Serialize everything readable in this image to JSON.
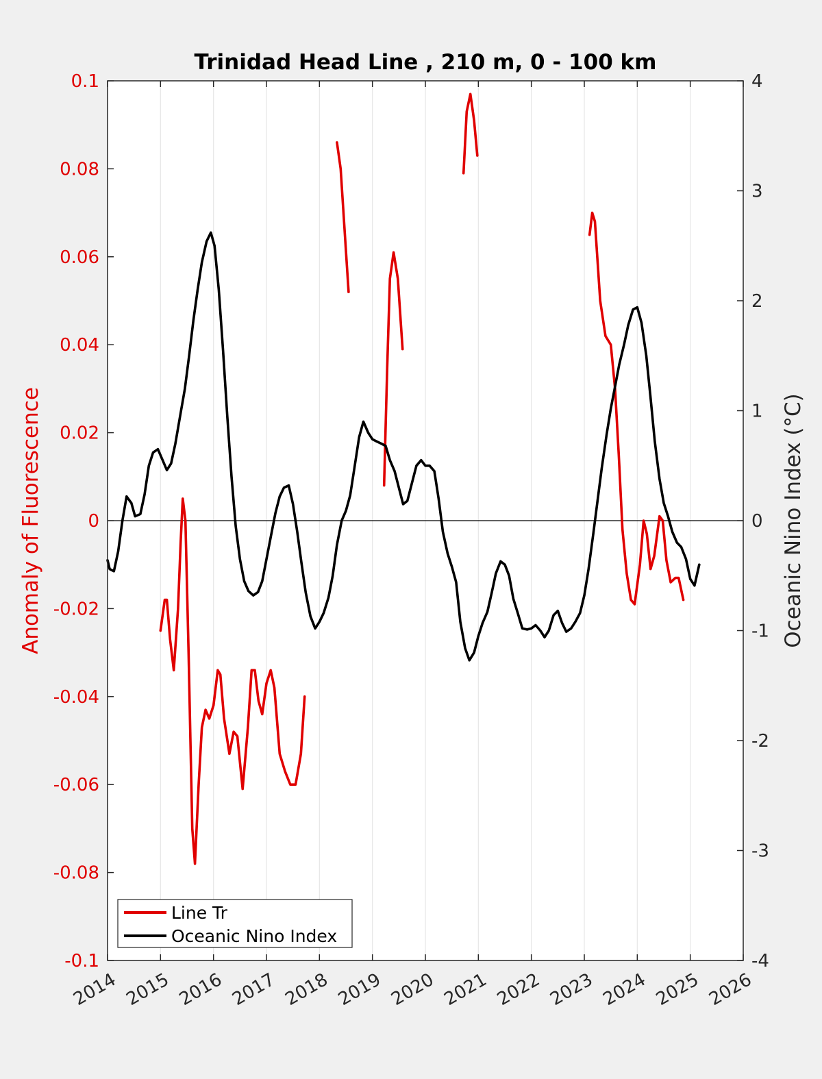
{
  "chart_data": {
    "type": "line",
    "title": "Trinidad Head Line , 210 m, 0 - 100 km",
    "ylabel_left": "Anomaly of Fluorescence",
    "ylabel_right": "Oceanic Nino Index (°C)",
    "xlim": [
      2014,
      2026
    ],
    "ylim_left": [
      -0.1,
      0.1
    ],
    "ylim_right": [
      -4,
      4
    ],
    "x_ticks": [
      2014,
      2015,
      2016,
      2017,
      2018,
      2019,
      2020,
      2021,
      2022,
      2023,
      2024,
      2025,
      2026
    ],
    "x_tick_labels": [
      "2014",
      "2015",
      "2016",
      "2017",
      "2018",
      "2019",
      "2020",
      "2021",
      "2022",
      "2023",
      "2024",
      "2025",
      "2026"
    ],
    "y_left_ticks": [
      -0.1,
      -0.08,
      -0.06,
      -0.04,
      -0.02,
      0,
      0.02,
      0.04,
      0.06,
      0.08,
      0.1
    ],
    "y_left_tick_labels": [
      "-0.1",
      "-0.08",
      "-0.06",
      "-0.04",
      "-0.02",
      "0",
      "0.02",
      "0.04",
      "0.06",
      "0.08",
      "0.1"
    ],
    "y_right_ticks": [
      -4,
      -3,
      -2,
      -1,
      0,
      1,
      2,
      3,
      4
    ],
    "y_right_tick_labels": [
      "-4",
      "-3",
      "-2",
      "-1",
      "0",
      "1",
      "2",
      "3",
      "4"
    ],
    "grid": "vertical",
    "legend_position": "bottom-left",
    "colors": {
      "line_tr": "#e00000",
      "oni": "#000000",
      "left_axis": "#e00000"
    },
    "series": [
      {
        "name": "Line Tr",
        "axis": "left",
        "segments": [
          [
            [
              2015.0,
              -0.025
            ],
            [
              2015.08,
              -0.018
            ],
            [
              2015.12,
              -0.018
            ],
            [
              2015.18,
              -0.027
            ],
            [
              2015.25,
              -0.034
            ],
            [
              2015.33,
              -0.02
            ],
            [
              2015.38,
              -0.005
            ],
            [
              2015.42,
              0.005
            ],
            [
              2015.47,
              0.0
            ],
            [
              2015.53,
              -0.03
            ],
            [
              2015.6,
              -0.07
            ],
            [
              2015.65,
              -0.078
            ],
            [
              2015.72,
              -0.06
            ],
            [
              2015.78,
              -0.047
            ],
            [
              2015.85,
              -0.043
            ],
            [
              2015.92,
              -0.045
            ],
            [
              2016.0,
              -0.042
            ],
            [
              2016.08,
              -0.034
            ],
            [
              2016.13,
              -0.035
            ],
            [
              2016.2,
              -0.045
            ],
            [
              2016.3,
              -0.053
            ],
            [
              2016.38,
              -0.048
            ],
            [
              2016.45,
              -0.049
            ],
            [
              2016.55,
              -0.061
            ],
            [
              2016.65,
              -0.047
            ],
            [
              2016.72,
              -0.034
            ],
            [
              2016.78,
              -0.034
            ],
            [
              2016.85,
              -0.041
            ],
            [
              2016.92,
              -0.044
            ],
            [
              2017.0,
              -0.037
            ],
            [
              2017.08,
              -0.034
            ],
            [
              2017.15,
              -0.038
            ],
            [
              2017.25,
              -0.053
            ],
            [
              2017.35,
              -0.057
            ],
            [
              2017.45,
              -0.06
            ],
            [
              2017.55,
              -0.06
            ],
            [
              2017.65,
              -0.053
            ],
            [
              2017.72,
              -0.04
            ]
          ],
          [
            [
              2018.33,
              0.086
            ],
            [
              2018.4,
              0.08
            ],
            [
              2018.48,
              0.065
            ],
            [
              2018.55,
              0.052
            ]
          ],
          [
            [
              2019.22,
              0.008
            ],
            [
              2019.28,
              0.035
            ],
            [
              2019.33,
              0.055
            ],
            [
              2019.4,
              0.061
            ],
            [
              2019.48,
              0.055
            ],
            [
              2019.57,
              0.039
            ]
          ],
          [
            [
              2020.72,
              0.079
            ],
            [
              2020.78,
              0.093
            ],
            [
              2020.85,
              0.097
            ],
            [
              2020.92,
              0.091
            ],
            [
              2020.98,
              0.083
            ]
          ],
          [
            [
              2023.1,
              0.065
            ],
            [
              2023.15,
              0.07
            ],
            [
              2023.2,
              0.068
            ],
            [
              2023.3,
              0.05
            ],
            [
              2023.4,
              0.042
            ],
            [
              2023.5,
              0.04
            ],
            [
              2023.58,
              0.03
            ],
            [
              2023.65,
              0.015
            ],
            [
              2023.72,
              -0.002
            ],
            [
              2023.8,
              -0.012
            ],
            [
              2023.88,
              -0.018
            ],
            [
              2023.95,
              -0.019
            ],
            [
              2024.05,
              -0.01
            ],
            [
              2024.12,
              0.0
            ],
            [
              2024.18,
              -0.003
            ],
            [
              2024.25,
              -0.011
            ],
            [
              2024.32,
              -0.008
            ],
            [
              2024.42,
              0.001
            ],
            [
              2024.48,
              0.0
            ],
            [
              2024.55,
              -0.009
            ],
            [
              2024.63,
              -0.014
            ],
            [
              2024.72,
              -0.013
            ],
            [
              2024.78,
              -0.013
            ],
            [
              2024.87,
              -0.018
            ]
          ]
        ]
      },
      {
        "name": "Oceanic Nino Index",
        "axis": "right",
        "segments": [
          [
            [
              2014.0,
              -0.36
            ],
            [
              2014.04,
              -0.44
            ],
            [
              2014.12,
              -0.46
            ],
            [
              2014.2,
              -0.28
            ],
            [
              2014.28,
              0.0
            ],
            [
              2014.36,
              0.22
            ],
            [
              2014.45,
              0.16
            ],
            [
              2014.52,
              0.04
            ],
            [
              2014.62,
              0.06
            ],
            [
              2014.7,
              0.24
            ],
            [
              2014.78,
              0.5
            ],
            [
              2014.86,
              0.62
            ],
            [
              2014.95,
              0.65
            ],
            [
              2015.04,
              0.55
            ],
            [
              2015.12,
              0.46
            ],
            [
              2015.2,
              0.52
            ],
            [
              2015.28,
              0.7
            ],
            [
              2015.37,
              0.95
            ],
            [
              2015.46,
              1.2
            ],
            [
              2015.54,
              1.5
            ],
            [
              2015.62,
              1.82
            ],
            [
              2015.7,
              2.1
            ],
            [
              2015.78,
              2.35
            ],
            [
              2015.87,
              2.54
            ],
            [
              2015.95,
              2.62
            ],
            [
              2016.02,
              2.5
            ],
            [
              2016.1,
              2.1
            ],
            [
              2016.18,
              1.55
            ],
            [
              2016.26,
              0.95
            ],
            [
              2016.34,
              0.4
            ],
            [
              2016.42,
              -0.05
            ],
            [
              2016.5,
              -0.35
            ],
            [
              2016.58,
              -0.55
            ],
            [
              2016.66,
              -0.64
            ],
            [
              2016.75,
              -0.68
            ],
            [
              2016.84,
              -0.65
            ],
            [
              2016.92,
              -0.55
            ],
            [
              2017.0,
              -0.35
            ],
            [
              2017.08,
              -0.15
            ],
            [
              2017.17,
              0.07
            ],
            [
              2017.25,
              0.22
            ],
            [
              2017.33,
              0.3
            ],
            [
              2017.42,
              0.32
            ],
            [
              2017.5,
              0.15
            ],
            [
              2017.58,
              -0.1
            ],
            [
              2017.66,
              -0.38
            ],
            [
              2017.74,
              -0.65
            ],
            [
              2017.83,
              -0.87
            ],
            [
              2017.92,
              -0.98
            ],
            [
              2018.0,
              -0.92
            ],
            [
              2018.08,
              -0.84
            ],
            [
              2018.17,
              -0.7
            ],
            [
              2018.25,
              -0.5
            ],
            [
              2018.33,
              -0.22
            ],
            [
              2018.42,
              0.0
            ],
            [
              2018.5,
              0.09
            ],
            [
              2018.58,
              0.23
            ],
            [
              2018.66,
              0.48
            ],
            [
              2018.75,
              0.76
            ],
            [
              2018.83,
              0.9
            ],
            [
              2018.92,
              0.8
            ],
            [
              2019.0,
              0.74
            ],
            [
              2019.08,
              0.72
            ],
            [
              2019.17,
              0.7
            ],
            [
              2019.25,
              0.68
            ],
            [
              2019.33,
              0.55
            ],
            [
              2019.42,
              0.45
            ],
            [
              2019.5,
              0.3
            ],
            [
              2019.58,
              0.15
            ],
            [
              2019.66,
              0.18
            ],
            [
              2019.75,
              0.35
            ],
            [
              2019.83,
              0.5
            ],
            [
              2019.92,
              0.55
            ],
            [
              2020.0,
              0.5
            ],
            [
              2020.08,
              0.5
            ],
            [
              2020.17,
              0.45
            ],
            [
              2020.25,
              0.2
            ],
            [
              2020.33,
              -0.1
            ],
            [
              2020.42,
              -0.3
            ],
            [
              2020.5,
              -0.42
            ],
            [
              2020.58,
              -0.56
            ],
            [
              2020.66,
              -0.92
            ],
            [
              2020.75,
              -1.16
            ],
            [
              2020.83,
              -1.27
            ],
            [
              2020.92,
              -1.2
            ],
            [
              2021.0,
              -1.05
            ],
            [
              2021.08,
              -0.93
            ],
            [
              2021.17,
              -0.83
            ],
            [
              2021.25,
              -0.66
            ],
            [
              2021.33,
              -0.48
            ],
            [
              2021.42,
              -0.37
            ],
            [
              2021.5,
              -0.4
            ],
            [
              2021.58,
              -0.5
            ],
            [
              2021.66,
              -0.71
            ],
            [
              2021.75,
              -0.85
            ],
            [
              2021.83,
              -0.98
            ],
            [
              2021.92,
              -0.99
            ],
            [
              2022.0,
              -0.98
            ],
            [
              2022.08,
              -0.95
            ],
            [
              2022.17,
              -1.0
            ],
            [
              2022.25,
              -1.06
            ],
            [
              2022.33,
              -1.0
            ],
            [
              2022.42,
              -0.86
            ],
            [
              2022.5,
              -0.82
            ],
            [
              2022.58,
              -0.93
            ],
            [
              2022.66,
              -1.01
            ],
            [
              2022.75,
              -0.98
            ],
            [
              2022.83,
              -0.92
            ],
            [
              2022.92,
              -0.84
            ],
            [
              2023.0,
              -0.68
            ],
            [
              2023.08,
              -0.44
            ],
            [
              2023.17,
              -0.12
            ],
            [
              2023.25,
              0.18
            ],
            [
              2023.33,
              0.48
            ],
            [
              2023.42,
              0.78
            ],
            [
              2023.5,
              1.02
            ],
            [
              2023.58,
              1.22
            ],
            [
              2023.66,
              1.42
            ],
            [
              2023.75,
              1.6
            ],
            [
              2023.83,
              1.78
            ],
            [
              2023.92,
              1.92
            ],
            [
              2024.0,
              1.94
            ],
            [
              2024.08,
              1.8
            ],
            [
              2024.17,
              1.5
            ],
            [
              2024.25,
              1.12
            ],
            [
              2024.33,
              0.72
            ],
            [
              2024.42,
              0.38
            ],
            [
              2024.5,
              0.16
            ],
            [
              2024.58,
              0.04
            ],
            [
              2024.66,
              -0.1
            ],
            [
              2024.75,
              -0.2
            ],
            [
              2024.83,
              -0.24
            ],
            [
              2024.92,
              -0.35
            ],
            [
              2025.0,
              -0.53
            ],
            [
              2025.08,
              -0.59
            ],
            [
              2025.17,
              -0.4
            ]
          ]
        ]
      }
    ]
  }
}
